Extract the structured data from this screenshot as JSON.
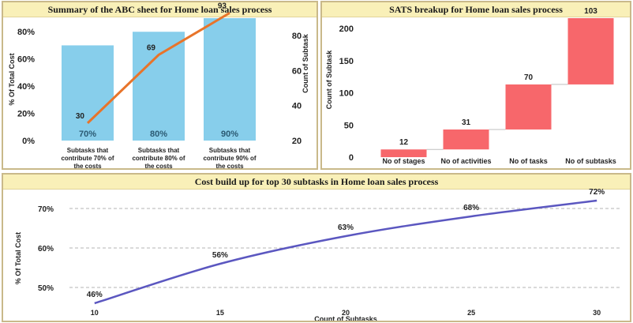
{
  "colors": {
    "title_bg": "#f9f0b8",
    "panel_border": "#c9b98a",
    "bar_blue": "#87ceeb",
    "line_orange": "#e8742a",
    "waterfall_red": "#f7676b",
    "line_purple": "#5b57c0"
  },
  "chart_data": [
    {
      "type": "bar",
      "title": "Summary of the ABC sheet for Home loan sales process",
      "ylabel": "% Of Total Cost",
      "y2label": "Count of Subtask",
      "categories": [
        "Subtasks that contribute 70% of the costs",
        "Subtasks that contribute 80% of the costs",
        "Subtasks that contribute 90% of the costs"
      ],
      "category_lines": [
        [
          "Subtasks that",
          "contribute 70% of",
          "the costs"
        ],
        [
          "Subtasks that",
          "contribute 80% of",
          "the costs"
        ],
        [
          "Subtasks that",
          "contribute 90% of",
          "the costs"
        ]
      ],
      "bar_labels": [
        "70%",
        "80%",
        "90%"
      ],
      "series": [
        {
          "values": [
            70,
            80,
            90
          ],
          "axis": "left",
          "render": "bar"
        },
        {
          "values": [
            30,
            69,
            93
          ],
          "axis": "right",
          "render": "line"
        }
      ],
      "ylim": [
        0,
        90
      ],
      "yticks": [
        "0%",
        "20%",
        "40%",
        "60%",
        "80%"
      ],
      "yticks_values": [
        0,
        20,
        40,
        60,
        80
      ],
      "y2lim": [
        20,
        90
      ],
      "y2ticks": [
        "20",
        "40",
        "60",
        "80"
      ],
      "y2ticks_values": [
        20,
        40,
        60,
        80
      ],
      "grid": false
    },
    {
      "type": "bar",
      "subtype": "waterfall",
      "title": "SATS breakup for Home loan sales process",
      "ylabel": "Count of Subtask",
      "categories": [
        "No of stages",
        "No of activities",
        "No of tasks",
        "No of subtasks"
      ],
      "values": [
        12,
        31,
        70,
        103
      ],
      "ylim": [
        0,
        216
      ],
      "yticks": [
        "0",
        "50",
        "100",
        "150",
        "200"
      ],
      "yticks_values": [
        0,
        50,
        100,
        150,
        200
      ],
      "grid": false
    },
    {
      "type": "line",
      "title": "Cost build up for top 30 subtasks in Home loan sales process",
      "xlabel": "Count of Subtasks",
      "ylabel": "% Of Total Cost",
      "x": [
        10,
        15,
        20,
        25,
        30
      ],
      "values": [
        46,
        56,
        63,
        68,
        72
      ],
      "point_labels": [
        "46%",
        "56%",
        "63%",
        "68%",
        "72%"
      ],
      "xlim": [
        9,
        31
      ],
      "ylim": [
        45,
        73
      ],
      "xticks": [
        "10",
        "15",
        "20",
        "25",
        "30"
      ],
      "yticks": [
        "50%",
        "60%",
        "70%"
      ],
      "yticks_values": [
        50,
        60,
        70
      ],
      "grid": "horizontal-dashed"
    }
  ]
}
